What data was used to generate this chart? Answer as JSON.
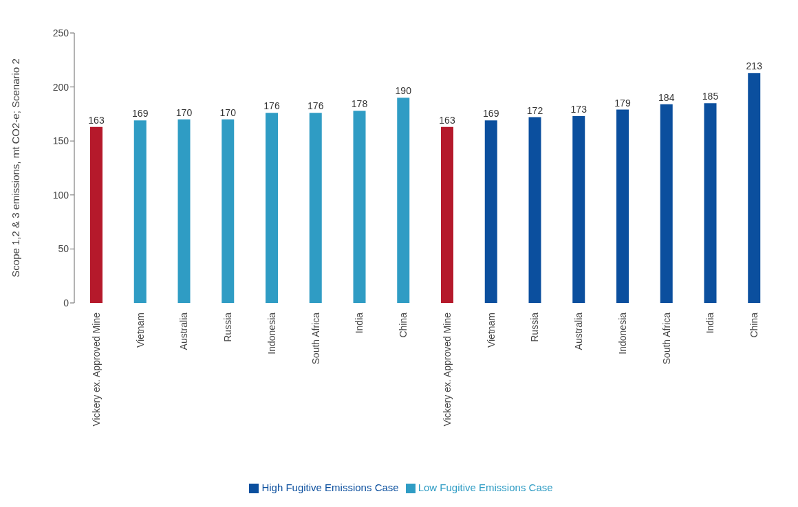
{
  "chart_data": {
    "type": "bar",
    "ylabel": "Scope 1,2 & 3 emissions, mt CO2-e; Scenario 2",
    "categories": [
      "Vickery ex. Approved Mine",
      "Vietnam",
      "Australia",
      "Russia",
      "Indonesia",
      "South Africa",
      "India",
      "China",
      "Vickery ex. Approved Mine",
      "Vietnam",
      "Russia",
      "Australia",
      "Indonesia",
      "South Africa",
      "India",
      "China"
    ],
    "series": [
      {
        "name": "Low Fugitive Emissions Case",
        "color": "#2f9cc4",
        "colors": [
          "#b5192b",
          "#2f9cc4",
          "#2f9cc4",
          "#2f9cc4",
          "#2f9cc4",
          "#2f9cc4",
          "#2f9cc4",
          "#2f9cc4",
          null,
          null,
          null,
          null,
          null,
          null,
          null,
          null
        ],
        "values": [
          163,
          169,
          170,
          170,
          176,
          176,
          178,
          190,
          null,
          null,
          null,
          null,
          null,
          null,
          null,
          null
        ]
      },
      {
        "name": "High Fugitive Emissions Case",
        "color": "#0b4f9e",
        "colors": [
          null,
          null,
          null,
          null,
          null,
          null,
          null,
          null,
          "#b5192b",
          "#0b4f9e",
          "#0b4f9e",
          "#0b4f9e",
          "#0b4f9e",
          "#0b4f9e",
          "#0b4f9e",
          "#0b4f9e"
        ],
        "values": [
          null,
          null,
          null,
          null,
          null,
          null,
          null,
          null,
          163,
          169,
          172,
          173,
          179,
          184,
          185,
          213
        ]
      }
    ],
    "ylim": [
      0,
      250
    ],
    "yticks": [
      0,
      50,
      100,
      150,
      200,
      250
    ],
    "data_labels": true,
    "legend": "bottom",
    "grid": false
  }
}
